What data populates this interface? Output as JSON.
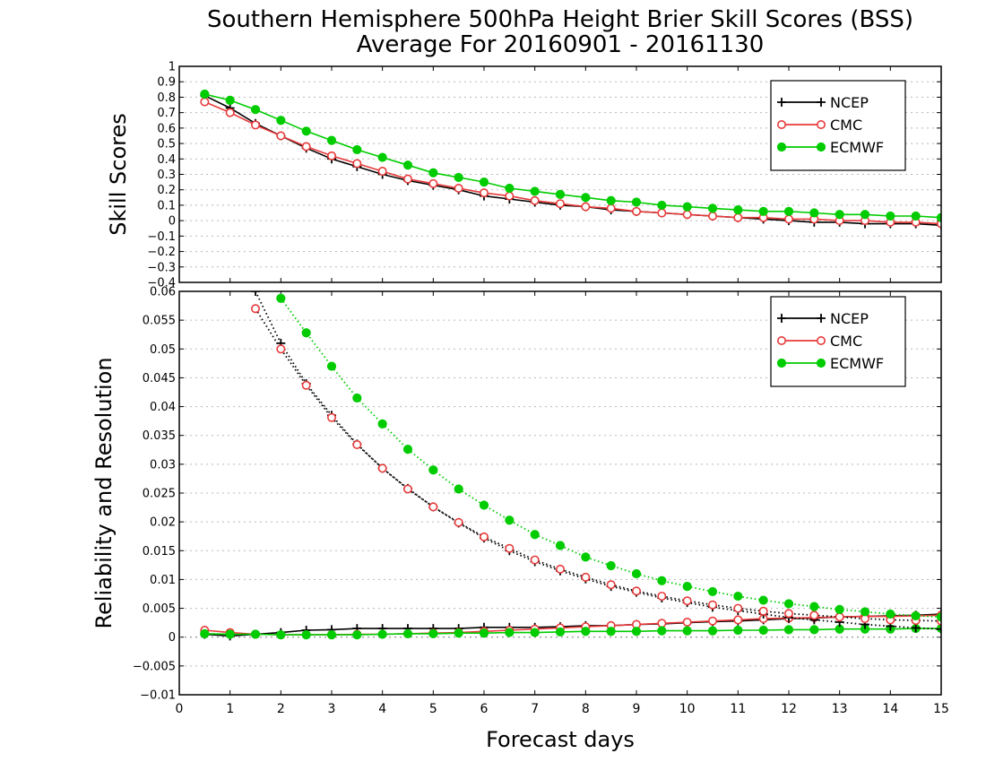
{
  "title_line1": "Southern Hemisphere 500hPa Height Brier Skill Scores (BSS)",
  "title_line2": "Average For 20160901 - 20161130",
  "xlabel": "Forecast days",
  "colors": {
    "NCEP": "#000000",
    "CMC": "#e83a3a",
    "ECMWF": "#00cc00"
  },
  "chart_data": [
    {
      "type": "line",
      "ylabel": "Skill Scores",
      "xlim": [
        0,
        15
      ],
      "ylim": [
        -0.4,
        1
      ],
      "xticks": [
        0,
        1,
        2,
        3,
        4,
        5,
        6,
        7,
        8,
        9,
        10,
        11,
        12,
        13,
        14,
        15
      ],
      "xtick_labels": [
        "0",
        "1",
        "2",
        "3",
        "4",
        "5",
        "6",
        "7",
        "8",
        "9",
        "10",
        "11",
        "12",
        "13",
        "14",
        "15"
      ],
      "yticks": [
        -0.4,
        -0.3,
        -0.2,
        -0.1,
        0,
        0.1,
        0.2,
        0.3,
        0.4,
        0.5,
        0.6,
        0.7,
        0.8,
        0.9,
        1
      ],
      "ytick_labels": [
        "-0.4",
        "-0.3",
        "-0.2",
        "-0.1",
        "0",
        "0.1",
        "0.2",
        "0.3",
        "0.4",
        "0.5",
        "0.6",
        "0.7",
        "0.8",
        "0.9",
        "1"
      ],
      "legend_position": "top-right",
      "x": [
        0.5,
        1,
        1.5,
        2,
        2.5,
        3,
        3.5,
        4,
        4.5,
        5,
        5.5,
        6,
        6.5,
        7,
        7.5,
        8,
        8.5,
        9,
        9.5,
        10,
        10.5,
        11,
        11.5,
        12,
        12.5,
        13,
        13.5,
        14,
        14.5,
        15
      ],
      "series": [
        {
          "name": "NCEP",
          "style": "solid",
          "marker": "plus",
          "values": [
            0.81,
            0.73,
            0.63,
            0.55,
            0.47,
            0.4,
            0.35,
            0.3,
            0.26,
            0.23,
            0.2,
            0.16,
            0.14,
            0.12,
            0.1,
            0.09,
            0.07,
            0.06,
            0.05,
            0.04,
            0.03,
            0.02,
            0.01,
            0.0,
            -0.01,
            -0.01,
            -0.02,
            -0.02,
            -0.02,
            -0.03
          ]
        },
        {
          "name": "CMC",
          "style": "solid",
          "marker": "circle-open",
          "values": [
            0.77,
            0.7,
            0.62,
            0.55,
            0.48,
            0.42,
            0.37,
            0.32,
            0.27,
            0.24,
            0.21,
            0.18,
            0.16,
            0.13,
            0.11,
            0.09,
            0.08,
            0.06,
            0.05,
            0.04,
            0.03,
            0.02,
            0.02,
            0.01,
            0.01,
            0.0,
            0.0,
            -0.01,
            -0.01,
            -0.02
          ]
        },
        {
          "name": "ECMWF",
          "style": "solid",
          "marker": "circle-filled",
          "values": [
            0.82,
            0.78,
            0.72,
            0.65,
            0.58,
            0.52,
            0.46,
            0.41,
            0.36,
            0.31,
            0.28,
            0.25,
            0.21,
            0.19,
            0.17,
            0.15,
            0.13,
            0.12,
            0.1,
            0.09,
            0.08,
            0.07,
            0.06,
            0.06,
            0.05,
            0.04,
            0.04,
            0.03,
            0.03,
            0.02
          ]
        }
      ]
    },
    {
      "type": "line",
      "ylabel": "Reliability and Resolution",
      "xlim": [
        0,
        15
      ],
      "ylim": [
        -0.01,
        0.06
      ],
      "xticks": [
        0,
        1,
        2,
        3,
        4,
        5,
        6,
        7,
        8,
        9,
        10,
        11,
        12,
        13,
        14,
        15
      ],
      "xtick_labels": [
        "0",
        "1",
        "2",
        "3",
        "4",
        "5",
        "6",
        "7",
        "8",
        "9",
        "10",
        "11",
        "12",
        "13",
        "14",
        "15"
      ],
      "yticks": [
        -0.01,
        -0.005,
        0,
        0.005,
        0.01,
        0.015,
        0.02,
        0.025,
        0.03,
        0.035,
        0.04,
        0.045,
        0.05,
        0.055,
        0.06
      ],
      "ytick_labels": [
        "-0.01",
        "-0.005",
        "0",
        "0.005",
        "0.01",
        "0.015",
        "0.02",
        "0.025",
        "0.03",
        "0.035",
        "0.04",
        "0.045",
        "0.05",
        "0.055",
        "0.06"
      ],
      "legend_position": "top-right",
      "x": [
        0.5,
        1,
        1.5,
        2,
        2.5,
        3,
        3.5,
        4,
        4.5,
        5,
        5.5,
        6,
        6.5,
        7,
        7.5,
        8,
        8.5,
        9,
        9.5,
        10,
        10.5,
        11,
        11.5,
        12,
        12.5,
        13,
        13.5,
        14,
        14.5,
        15
      ],
      "series": [
        {
          "name": "NCEP",
          "style": "solid",
          "marker": "plus",
          "legend": true,
          "values": [
            0.0005,
            0.0002,
            0.0005,
            0.0008,
            0.0012,
            0.0013,
            0.0015,
            0.0015,
            0.0015,
            0.0015,
            0.0015,
            0.0017,
            0.0017,
            0.0017,
            0.0018,
            0.002,
            0.002,
            0.0022,
            0.0023,
            0.0025,
            0.0027,
            0.0028,
            0.003,
            0.0032,
            0.0033,
            0.0035,
            0.0036,
            0.0037,
            0.0038,
            0.004
          ]
        },
        {
          "name": "CMC",
          "style": "solid",
          "marker": "circle-open",
          "legend": true,
          "values": [
            0.0012,
            0.0008,
            0.0005,
            0.0004,
            0.0004,
            0.0004,
            0.0005,
            0.0005,
            0.0006,
            0.0007,
            0.0008,
            0.001,
            0.0012,
            0.0014,
            0.0016,
            0.0018,
            0.002,
            0.0022,
            0.0024,
            0.0026,
            0.0028,
            0.003,
            0.0032,
            0.0033,
            0.0034,
            0.0035,
            0.0036,
            0.0036,
            0.0037,
            0.0038
          ]
        },
        {
          "name": "ECMWF",
          "style": "solid",
          "marker": "circle-filled",
          "legend": true,
          "values": [
            0.0006,
            0.0005,
            0.0005,
            0.0004,
            0.0004,
            0.0004,
            0.0004,
            0.0005,
            0.0006,
            0.0006,
            0.0007,
            0.0007,
            0.0008,
            0.0008,
            0.0009,
            0.001,
            0.001,
            0.001,
            0.0011,
            0.0011,
            0.0011,
            0.0012,
            0.0012,
            0.0013,
            0.0013,
            0.0014,
            0.0014,
            0.0014,
            0.0015,
            0.0015
          ]
        },
        {
          "name": "NCEP",
          "style": "dotted",
          "marker": "plus",
          "legend": false,
          "values": [
            null,
            null,
            0.06,
            0.051,
            0.044,
            0.0385,
            0.0335,
            0.0293,
            0.0258,
            0.0226,
            0.0198,
            0.0172,
            0.015,
            0.0131,
            0.0115,
            0.0101,
            0.0088,
            0.0078,
            0.0068,
            0.006,
            0.0052,
            0.0046,
            0.004,
            0.0034,
            0.003,
            0.0026,
            0.0022,
            0.0019,
            0.0016,
            0.0014
          ]
        },
        {
          "name": "CMC",
          "style": "dotted",
          "marker": "circle-open",
          "legend": false,
          "values": [
            null,
            null,
            0.057,
            0.05,
            0.0437,
            0.0381,
            0.0334,
            0.0293,
            0.0257,
            0.0226,
            0.0199,
            0.0174,
            0.0154,
            0.0134,
            0.0118,
            0.0104,
            0.0091,
            0.008,
            0.0071,
            0.0063,
            0.0056,
            0.005,
            0.0045,
            0.0041,
            0.0038,
            0.0035,
            0.0032,
            0.003,
            0.0029,
            0.0028
          ]
        },
        {
          "name": "ECMWF",
          "style": "dotted",
          "marker": "circle-filled",
          "legend": false,
          "values": [
            null,
            null,
            null,
            0.0588,
            0.0528,
            0.047,
            0.0415,
            0.037,
            0.0326,
            0.029,
            0.0257,
            0.0229,
            0.0203,
            0.0178,
            0.0159,
            0.0139,
            0.0124,
            0.011,
            0.0098,
            0.0088,
            0.0079,
            0.0071,
            0.0064,
            0.0058,
            0.0053,
            0.0048,
            0.0044,
            0.004,
            0.0037,
            0.0035
          ]
        }
      ]
    }
  ]
}
